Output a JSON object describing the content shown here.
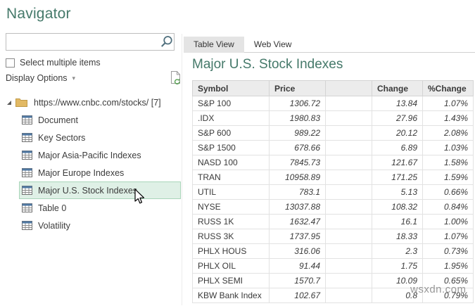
{
  "dialog": {
    "title": "Navigator"
  },
  "left_panel": {
    "search": {
      "placeholder": ""
    },
    "select_multiple_label": "Select multiple items",
    "display_options_label": "Display Options",
    "tree": {
      "root_label": "https://www.cnbc.com/stocks/ [7]",
      "items": [
        {
          "label": "Document",
          "selected": false
        },
        {
          "label": "Key Sectors",
          "selected": false
        },
        {
          "label": "Major Asia-Pacific Indexes",
          "selected": false
        },
        {
          "label": "Major Europe Indexes",
          "selected": false
        },
        {
          "label": "Major U.S. Stock Indexes",
          "selected": true
        },
        {
          "label": "Table 0",
          "selected": false
        },
        {
          "label": "Volatility",
          "selected": false
        }
      ]
    }
  },
  "preview": {
    "tabs": {
      "table_view": "Table View",
      "web_view": "Web View",
      "active": "Table View"
    },
    "title": "Major U.S. Stock Indexes",
    "table": {
      "columns": [
        "Symbol",
        "Price",
        "",
        "Change",
        "%Change"
      ],
      "rows": [
        [
          "S&P 100",
          "1306.72",
          "",
          "13.84",
          "1.07%"
        ],
        [
          ".IDX",
          "1980.83",
          "",
          "27.96",
          "1.43%"
        ],
        [
          "S&P 600",
          "989.22",
          "",
          "20.12",
          "2.08%"
        ],
        [
          "S&P 1500",
          "678.66",
          "",
          "6.89",
          "1.03%"
        ],
        [
          "NASD 100",
          "7845.73",
          "",
          "121.67",
          "1.58%"
        ],
        [
          "TRAN",
          "10958.89",
          "",
          "171.25",
          "1.59%"
        ],
        [
          "UTIL",
          "783.1",
          "",
          "5.13",
          "0.66%"
        ],
        [
          "NYSE",
          "13037.88",
          "",
          "108.32",
          "0.84%"
        ],
        [
          "RUSS 1K",
          "1632.47",
          "",
          "16.1",
          "1.00%"
        ],
        [
          "RUSS 3K",
          "1737.95",
          "",
          "18.33",
          "1.07%"
        ],
        [
          "PHLX HOUS",
          "316.06",
          "",
          "2.3",
          "0.73%"
        ],
        [
          "PHLX OIL",
          "91.44",
          "",
          "1.75",
          "1.95%"
        ],
        [
          "PHLX SEMI",
          "1570.7",
          "",
          "10.09",
          "0.65%"
        ],
        [
          "KBW Bank Index",
          "102.67",
          "",
          "0.8",
          "0.79%"
        ]
      ]
    }
  },
  "watermark": "wsxdn.com",
  "colors": {
    "heading_green": "#45796a",
    "selection_bg": "#dff0e6",
    "selection_border": "#a9d5b9",
    "tab_active_bg": "#e4e4e4",
    "table_header_bg": "#ececec",
    "folder_icon": "#e2b964",
    "table_icon_header": "#5079a3",
    "refresh_icon_green": "#58a253"
  }
}
